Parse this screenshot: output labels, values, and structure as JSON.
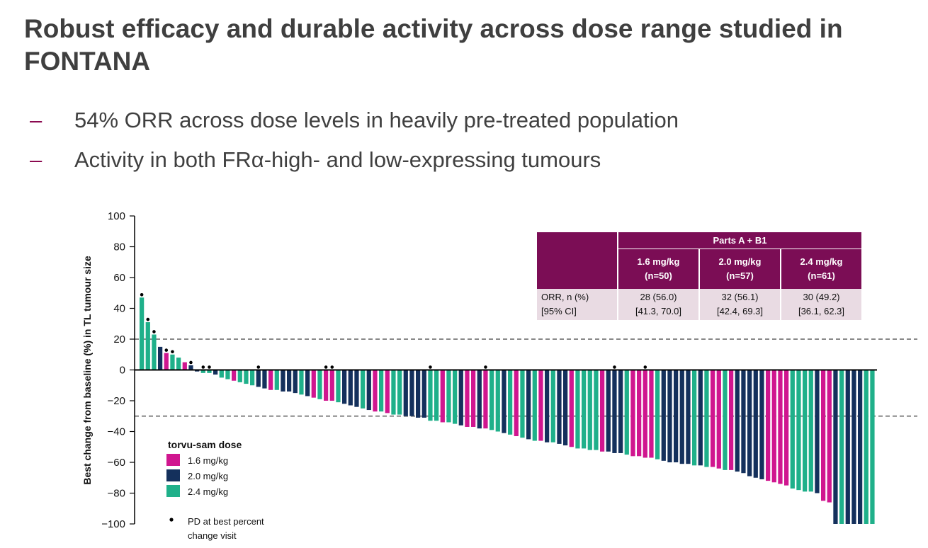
{
  "slide": {
    "title": "Robust efficacy and durable activity across dose range studied in FONTANA",
    "bullet_marker": "–",
    "bullets": [
      "54% ORR across dose levels in heavily pre-treated population",
      "Activity in both FRα-high- and low-expressing tumours"
    ]
  },
  "table": {
    "group_header": "Parts A + B1",
    "columns": [
      {
        "dose": "1.6 mg/kg",
        "n": "(n=50)",
        "orr": "28 (56.0)",
        "ci": "[41.3, 70.0]"
      },
      {
        "dose": "2.0 mg/kg",
        "n": "(n=57)",
        "orr": "32 (56.1)",
        "ci": "[42.4, 69.3]"
      },
      {
        "dose": "2.4 mg/kg",
        "n": "(n=61)",
        "orr": "30 (49.2)",
        "ci": "[36.1, 62.3]"
      }
    ],
    "row_label_1": "ORR, n (%)",
    "row_label_2": "[95% CI]"
  },
  "colors": {
    "1.6": "#d0168f",
    "2.0": "#14305c",
    "2.4": "#1fb08a",
    "accent": "#7b0d55",
    "threshold_line": "#888888"
  },
  "chart_data": {
    "type": "bar",
    "title": "",
    "xlabel": "",
    "ylabel": "Best change from baseline (%) in TL tumour size",
    "ylim": [
      -100,
      100
    ],
    "yticks": [
      100,
      80,
      60,
      40,
      20,
      0,
      -20,
      -40,
      -60,
      -80,
      -100
    ],
    "ytick_labels": [
      "100",
      "80",
      "60",
      "40",
      "20",
      "0",
      "−20",
      "−40",
      "−60",
      "−80",
      "−100"
    ],
    "reference_lines": [
      20,
      -30
    ],
    "legend": {
      "title": "torvu-sam dose",
      "entries": [
        {
          "label": "1.6 mg/kg",
          "dose": "1.6"
        },
        {
          "label": "2.0 mg/kg",
          "dose": "2.0"
        },
        {
          "label": "2.4 mg/kg",
          "dose": "2.4"
        }
      ],
      "pd_marker_label_1": "PD at best percent",
      "pd_marker_label_2": "change visit"
    },
    "bars": [
      {
        "value": 47,
        "dose": "2.4",
        "pd": true
      },
      {
        "value": 31,
        "dose": "2.4",
        "pd": true
      },
      {
        "value": 23,
        "dose": "2.4",
        "pd": true
      },
      {
        "value": 15,
        "dose": "2.0",
        "pd": false
      },
      {
        "value": 11,
        "dose": "1.6",
        "pd": true
      },
      {
        "value": 10,
        "dose": "2.4",
        "pd": true
      },
      {
        "value": 8,
        "dose": "2.4",
        "pd": false
      },
      {
        "value": 5,
        "dose": "1.6",
        "pd": false
      },
      {
        "value": 3,
        "dose": "2.0",
        "pd": true
      },
      {
        "value": -1,
        "dose": "2.0",
        "pd": false
      },
      {
        "value": -2,
        "dose": "2.4",
        "pd": true
      },
      {
        "value": -2,
        "dose": "2.4",
        "pd": true
      },
      {
        "value": -3,
        "dose": "2.0",
        "pd": false
      },
      {
        "value": -5,
        "dose": "2.4",
        "pd": false
      },
      {
        "value": -6,
        "dose": "2.4",
        "pd": false
      },
      {
        "value": -7,
        "dose": "1.6",
        "pd": false
      },
      {
        "value": -8,
        "dose": "2.4",
        "pd": false
      },
      {
        "value": -9,
        "dose": "2.4",
        "pd": false
      },
      {
        "value": -10,
        "dose": "2.4",
        "pd": false
      },
      {
        "value": -11,
        "dose": "2.0",
        "pd": true
      },
      {
        "value": -12,
        "dose": "2.0",
        "pd": false
      },
      {
        "value": -13,
        "dose": "1.6",
        "pd": false
      },
      {
        "value": -13,
        "dose": "2.4",
        "pd": false
      },
      {
        "value": -14,
        "dose": "2.0",
        "pd": false
      },
      {
        "value": -14,
        "dose": "2.0",
        "pd": false
      },
      {
        "value": -15,
        "dose": "2.0",
        "pd": false
      },
      {
        "value": -16,
        "dose": "2.4",
        "pd": false
      },
      {
        "value": -17,
        "dose": "2.0",
        "pd": false
      },
      {
        "value": -18,
        "dose": "1.6",
        "pd": false
      },
      {
        "value": -19,
        "dose": "2.4",
        "pd": false
      },
      {
        "value": -20,
        "dose": "1.6",
        "pd": true
      },
      {
        "value": -20,
        "dose": "1.6",
        "pd": true
      },
      {
        "value": -21,
        "dose": "2.4",
        "pd": false
      },
      {
        "value": -22,
        "dose": "2.0",
        "pd": false
      },
      {
        "value": -23,
        "dose": "2.0",
        "pd": false
      },
      {
        "value": -24,
        "dose": "2.0",
        "pd": false
      },
      {
        "value": -25,
        "dose": "2.4",
        "pd": false
      },
      {
        "value": -26,
        "dose": "2.0",
        "pd": false
      },
      {
        "value": -27,
        "dose": "1.6",
        "pd": false
      },
      {
        "value": -27,
        "dose": "2.4",
        "pd": false
      },
      {
        "value": -28,
        "dose": "1.6",
        "pd": false
      },
      {
        "value": -29,
        "dose": "2.4",
        "pd": false
      },
      {
        "value": -29,
        "dose": "2.4",
        "pd": false
      },
      {
        "value": -30,
        "dose": "2.0",
        "pd": false
      },
      {
        "value": -30,
        "dose": "2.0",
        "pd": false
      },
      {
        "value": -31,
        "dose": "2.0",
        "pd": false
      },
      {
        "value": -31,
        "dose": "2.0",
        "pd": false
      },
      {
        "value": -33,
        "dose": "2.4",
        "pd": true
      },
      {
        "value": -33,
        "dose": "2.4",
        "pd": false
      },
      {
        "value": -34,
        "dose": "1.6",
        "pd": false
      },
      {
        "value": -34,
        "dose": "2.4",
        "pd": false
      },
      {
        "value": -35,
        "dose": "2.4",
        "pd": false
      },
      {
        "value": -36,
        "dose": "2.0",
        "pd": false
      },
      {
        "value": -37,
        "dose": "1.6",
        "pd": false
      },
      {
        "value": -37,
        "dose": "1.6",
        "pd": false
      },
      {
        "value": -38,
        "dose": "2.0",
        "pd": false
      },
      {
        "value": -38,
        "dose": "1.6",
        "pd": true
      },
      {
        "value": -39,
        "dose": "2.4",
        "pd": false
      },
      {
        "value": -40,
        "dose": "2.4",
        "pd": false
      },
      {
        "value": -41,
        "dose": "2.0",
        "pd": false
      },
      {
        "value": -42,
        "dose": "2.4",
        "pd": false
      },
      {
        "value": -43,
        "dose": "1.6",
        "pd": false
      },
      {
        "value": -44,
        "dose": "2.4",
        "pd": false
      },
      {
        "value": -45,
        "dose": "2.0",
        "pd": false
      },
      {
        "value": -46,
        "dose": "2.4",
        "pd": false
      },
      {
        "value": -46,
        "dose": "1.6",
        "pd": false
      },
      {
        "value": -47,
        "dose": "2.0",
        "pd": false
      },
      {
        "value": -47,
        "dose": "2.4",
        "pd": false
      },
      {
        "value": -48,
        "dose": "2.0",
        "pd": false
      },
      {
        "value": -49,
        "dose": "2.0",
        "pd": false
      },
      {
        "value": -50,
        "dose": "1.6",
        "pd": false
      },
      {
        "value": -51,
        "dose": "2.4",
        "pd": false
      },
      {
        "value": -51,
        "dose": "2.4",
        "pd": false
      },
      {
        "value": -52,
        "dose": "2.4",
        "pd": false
      },
      {
        "value": -52,
        "dose": "2.4",
        "pd": false
      },
      {
        "value": -53,
        "dose": "1.6",
        "pd": false
      },
      {
        "value": -53,
        "dose": "2.0",
        "pd": false
      },
      {
        "value": -54,
        "dose": "2.0",
        "pd": true
      },
      {
        "value": -54,
        "dose": "2.0",
        "pd": false
      },
      {
        "value": -55,
        "dose": "2.4",
        "pd": false
      },
      {
        "value": -56,
        "dose": "1.6",
        "pd": false
      },
      {
        "value": -56,
        "dose": "1.6",
        "pd": false
      },
      {
        "value": -57,
        "dose": "1.6",
        "pd": true
      },
      {
        "value": -57,
        "dose": "1.6",
        "pd": false
      },
      {
        "value": -58,
        "dose": "2.4",
        "pd": false
      },
      {
        "value": -59,
        "dose": "2.0",
        "pd": false
      },
      {
        "value": -60,
        "dose": "2.0",
        "pd": false
      },
      {
        "value": -60,
        "dose": "2.0",
        "pd": false
      },
      {
        "value": -61,
        "dose": "2.0",
        "pd": false
      },
      {
        "value": -61,
        "dose": "2.0",
        "pd": false
      },
      {
        "value": -62,
        "dose": "2.4",
        "pd": false
      },
      {
        "value": -62,
        "dose": "2.0",
        "pd": false
      },
      {
        "value": -63,
        "dose": "2.4",
        "pd": false
      },
      {
        "value": -63,
        "dose": "1.6",
        "pd": false
      },
      {
        "value": -64,
        "dose": "1.6",
        "pd": false
      },
      {
        "value": -65,
        "dose": "2.4",
        "pd": false
      },
      {
        "value": -65,
        "dose": "1.6",
        "pd": false
      },
      {
        "value": -66,
        "dose": "2.0",
        "pd": false
      },
      {
        "value": -67,
        "dose": "2.0",
        "pd": false
      },
      {
        "value": -69,
        "dose": "2.0",
        "pd": false
      },
      {
        "value": -70,
        "dose": "2.0",
        "pd": false
      },
      {
        "value": -71,
        "dose": "2.0",
        "pd": false
      },
      {
        "value": -72,
        "dose": "1.6",
        "pd": false
      },
      {
        "value": -73,
        "dose": "1.6",
        "pd": false
      },
      {
        "value": -74,
        "dose": "1.6",
        "pd": false
      },
      {
        "value": -75,
        "dose": "1.6",
        "pd": false
      },
      {
        "value": -77,
        "dose": "2.4",
        "pd": false
      },
      {
        "value": -78,
        "dose": "2.4",
        "pd": false
      },
      {
        "value": -79,
        "dose": "2.4",
        "pd": false
      },
      {
        "value": -79,
        "dose": "2.4",
        "pd": false
      },
      {
        "value": -80,
        "dose": "2.0",
        "pd": false
      },
      {
        "value": -85,
        "dose": "1.6",
        "pd": false
      },
      {
        "value": -86,
        "dose": "1.6",
        "pd": false
      },
      {
        "value": -100,
        "dose": "2.0",
        "pd": false
      },
      {
        "value": -100,
        "dose": "2.4",
        "pd": false
      },
      {
        "value": -100,
        "dose": "2.0",
        "pd": false
      },
      {
        "value": -100,
        "dose": "2.0",
        "pd": false
      },
      {
        "value": -100,
        "dose": "2.0",
        "pd": false
      },
      {
        "value": -100,
        "dose": "2.4",
        "pd": false
      },
      {
        "value": -100,
        "dose": "2.4",
        "pd": false
      }
    ]
  }
}
